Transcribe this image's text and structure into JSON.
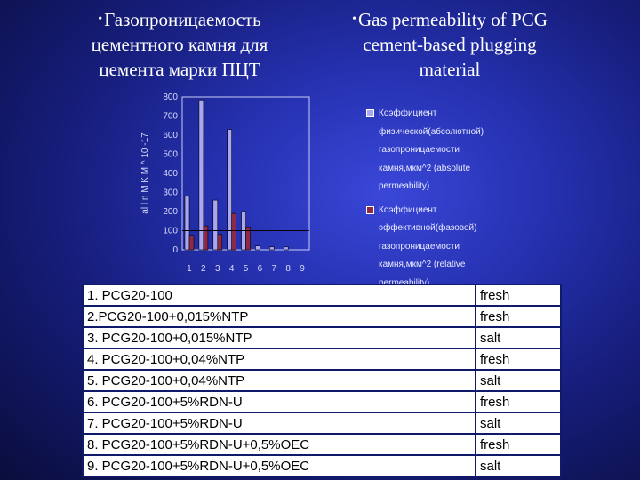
{
  "left_caption": {
    "bullet": "•",
    "lines": [
      "Газопроницаемость",
      "цементного камня для",
      "цемента марки ПЦТ"
    ]
  },
  "right_caption": {
    "bullet": "•",
    "lines": [
      "Gas permeability of PCG",
      "cement-based plugging",
      "material"
    ]
  },
  "chart_data": {
    "type": "bar",
    "ylabel": "al l n  M K M  ^  10  -17",
    "ylim": [
      0,
      800
    ],
    "yticks": [
      "0",
      "100",
      "200",
      "300",
      "400",
      "500",
      "600",
      "700",
      "800"
    ],
    "categories": [
      "1",
      "2",
      "3",
      "4",
      "5",
      "6",
      "7",
      "8",
      "9"
    ],
    "reference_line": 100,
    "series": [
      {
        "name": "Коэффициент физической(абсолютной) газопроницаемости камня,мкм^2 (absolute permeability)",
        "color": "#a9a7f2",
        "values": [
          280,
          780,
          260,
          630,
          200,
          20,
          15,
          15,
          0
        ]
      },
      {
        "name": "Коэффициент эффективной(фазовой) газопроницаемости камня,мкм^2 (relative permeability)",
        "color": "#8e2a46",
        "values": [
          75,
          125,
          80,
          190,
          120,
          0,
          0,
          0,
          0
        ]
      }
    ]
  },
  "legend": [
    {
      "color": "#a9a7f2",
      "lines": [
        "Коэффициент",
        "физической(абсолютной)",
        "газопроницаемости",
        "камня,мкм^2 (absolute",
        "permeability)"
      ]
    },
    {
      "color": "#8e2a46",
      "lines": [
        "Коэффициент",
        "эффективной(фазовой)",
        "газопроницаемости",
        "камня,мкм^2 (relative",
        "permeability)"
      ]
    }
  ],
  "table": {
    "rows": [
      {
        "mix": "1. PCG20-100",
        "water": "fresh"
      },
      {
        "mix": "2.PCG20-100+0,015%NTP",
        "water": "fresh"
      },
      {
        "mix": "3. PCG20-100+0,015%NTP",
        "water": "salt"
      },
      {
        "mix": "4. PCG20-100+0,04%NTP",
        "water": "fresh"
      },
      {
        "mix": "5. PCG20-100+0,04%NTP",
        "water": "salt"
      },
      {
        "mix": "6. PCG20-100+5%RDN-U",
        "water": "fresh"
      },
      {
        "mix": "7. PCG20-100+5%RDN-U",
        "water": "salt"
      },
      {
        "mix": "8. PCG20-100+5%RDN-U+0,5%OEC",
        "water": "fresh"
      },
      {
        "mix": "9. PCG20-100+5%RDN-U+0,5%OEC",
        "water": "salt"
      }
    ]
  }
}
